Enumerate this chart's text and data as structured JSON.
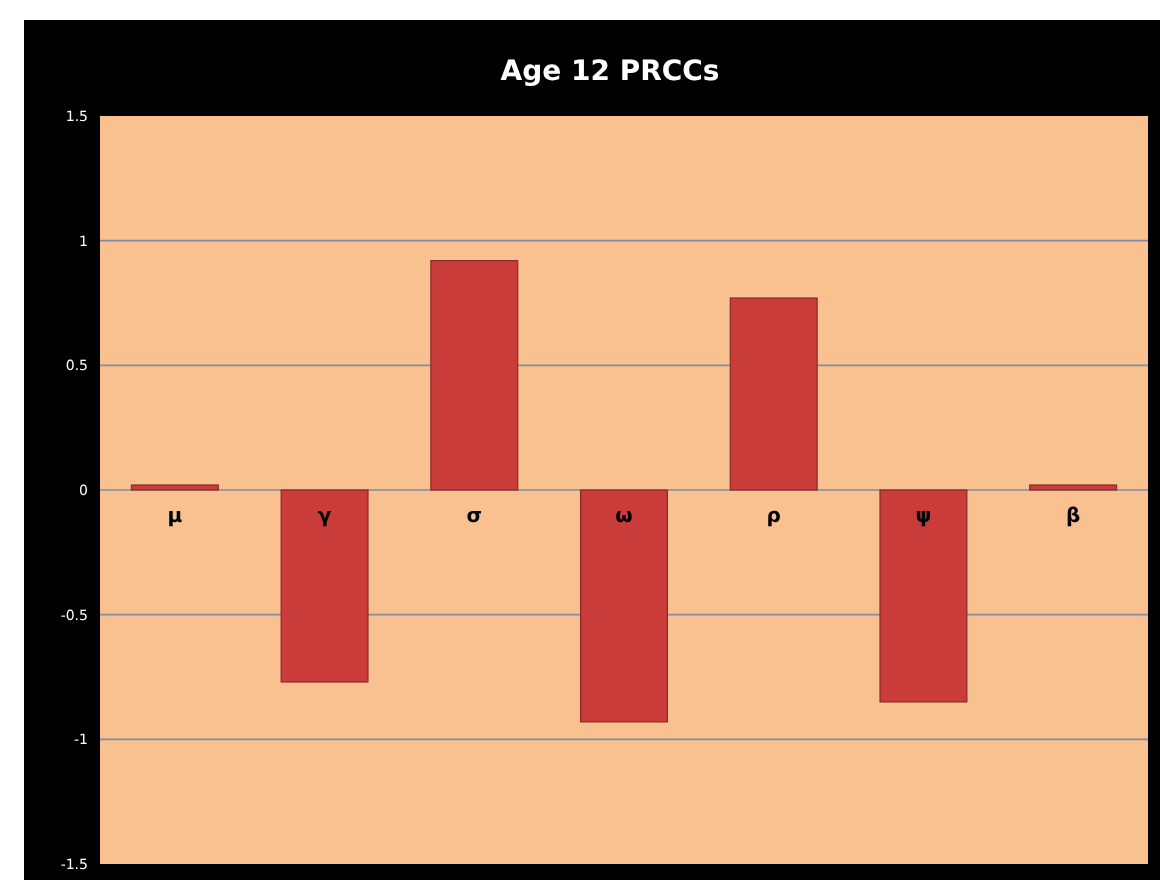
{
  "chart_data": {
    "type": "bar",
    "title": "Age 12 PRCCs",
    "categories": [
      "μ",
      "γ",
      "σ",
      "ω",
      "ρ",
      "ψ",
      "β"
    ],
    "values": [
      0.02,
      -0.77,
      0.92,
      -0.93,
      0.77,
      -0.85,
      0.02
    ],
    "color": "#c93c3a",
    "ylim": [
      -1.5,
      1.5
    ],
    "yticks": [
      -1.5,
      -1,
      -0.5,
      0,
      0.5,
      1,
      1.5
    ],
    "grid": "y"
  }
}
